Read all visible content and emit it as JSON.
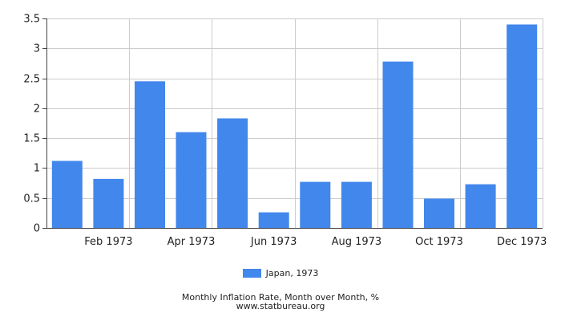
{
  "chart_data": {
    "type": "bar",
    "categories": [
      "Jan 1973",
      "Feb 1973",
      "Mar 1973",
      "Apr 1973",
      "May 1973",
      "Jun 1973",
      "Jul 1973",
      "Aug 1973",
      "Sep 1973",
      "Oct 1973",
      "Nov 1973",
      "Dec 1973"
    ],
    "x_tick_labels": [
      "",
      "Feb 1973",
      "",
      "Apr 1973",
      "",
      "Jun 1973",
      "",
      "Aug 1973",
      "",
      "Oct 1973",
      "",
      "Dec 1973"
    ],
    "series": [
      {
        "name": "Japan, 1973",
        "color": "#4287ec",
        "values": [
          1.12,
          0.82,
          2.45,
          1.6,
          1.83,
          0.26,
          0.77,
          0.77,
          2.78,
          0.49,
          0.73,
          3.4
        ]
      }
    ],
    "y_ticks": [
      "0",
      "0.5",
      "1",
      "1.5",
      "2",
      "2.5",
      "3",
      "3.5"
    ],
    "ylim": [
      0,
      3.5
    ],
    "grid": true,
    "legend_position": "bottom-center",
    "title": "Monthly Inflation Rate, Month over Month, %",
    "source": "www.statbureau.org"
  }
}
